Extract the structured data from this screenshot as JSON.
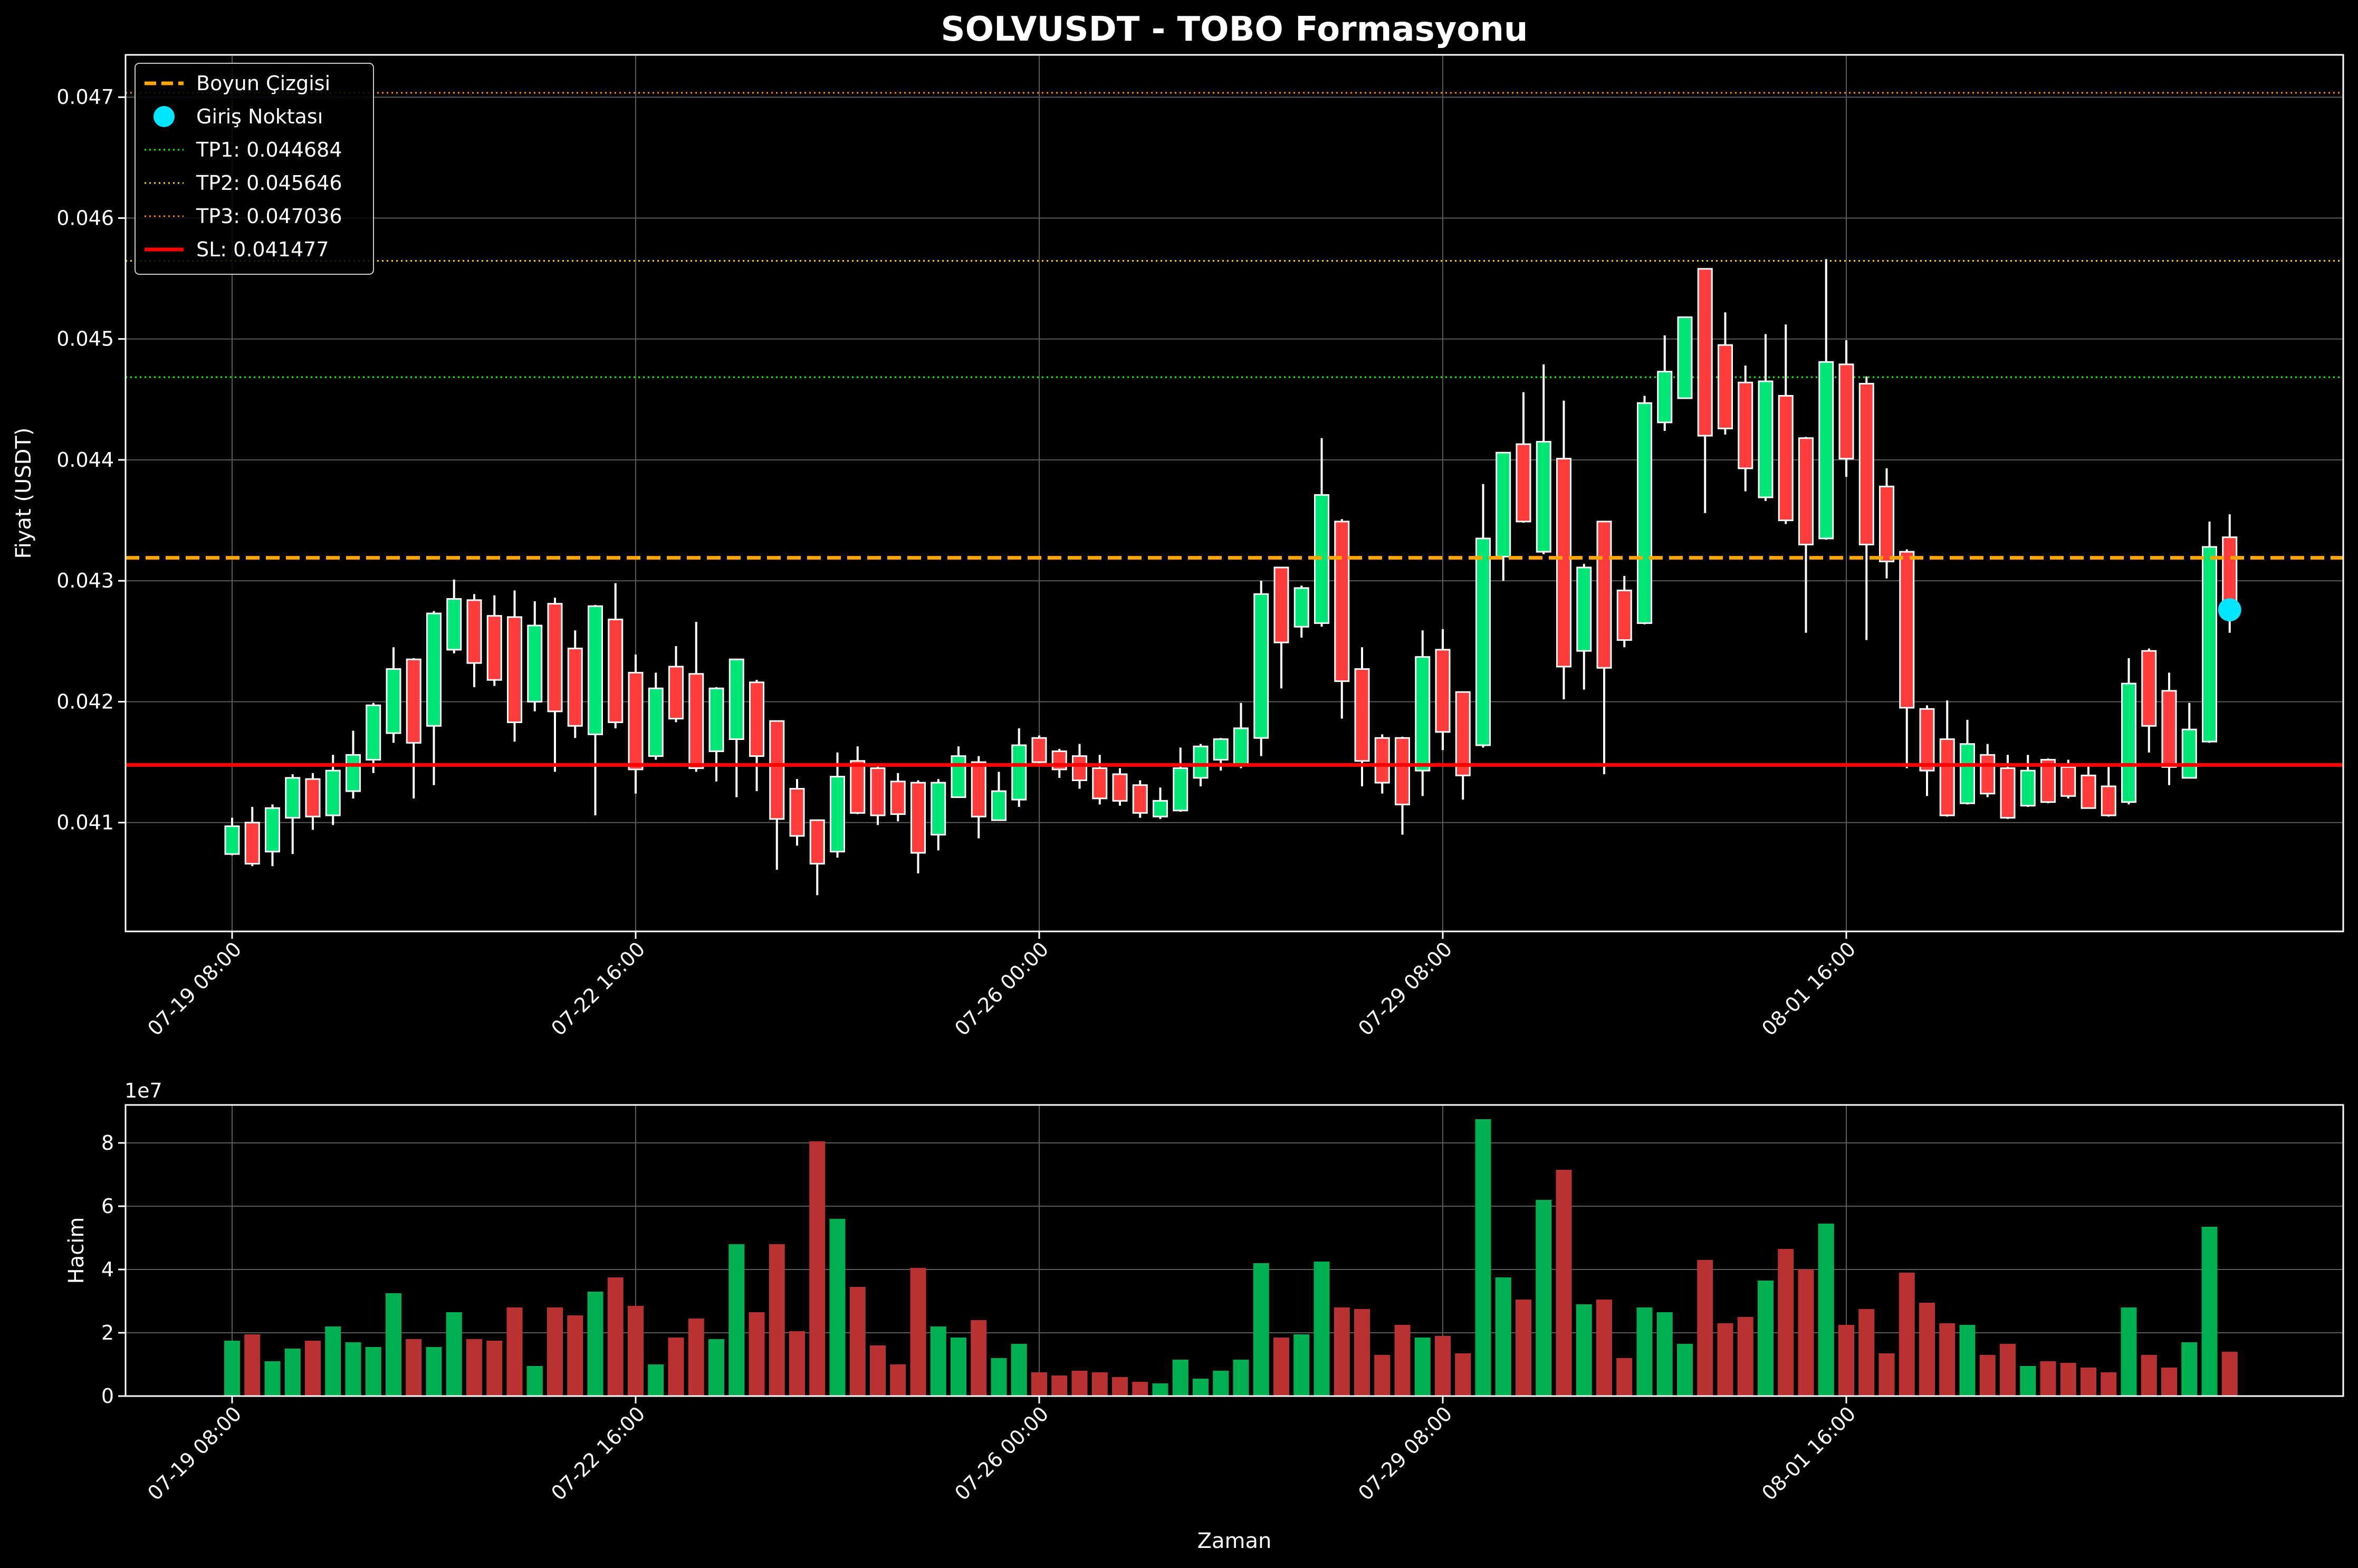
{
  "chart_data": {
    "type": "candlestick",
    "title": "SOLVUSDT - TOBO Formasyonu",
    "colors": {
      "background": "#000000",
      "up": "#00e676",
      "down": "#ff3d3d",
      "vol_up": "#00b050",
      "vol_down": "#b83232",
      "neck": "#ffa500",
      "entry": "#00e5ff",
      "tp1": "#00ff00",
      "tp2": "#ffd700",
      "tp3": "#ff8c00",
      "sl": "#ff0000"
    },
    "price_panel": {
      "ylabel": "Fiyat (USDT)",
      "ylim": [
        0.0401,
        0.04735
      ],
      "yticks": [
        "0.041",
        "0.042",
        "0.043",
        "0.044",
        "0.045",
        "0.046",
        "0.047"
      ],
      "grid": true
    },
    "volume_panel": {
      "ylabel": "Hacim",
      "multiplier": "1e7",
      "ylim": [
        0,
        9.2
      ],
      "yticks": [
        "0",
        "2",
        "4",
        "6",
        "8"
      ],
      "xlabel": "Zaman",
      "grid": true
    },
    "xticks": [
      {
        "index": 0,
        "label": "07-19 08:00"
      },
      {
        "index": 20,
        "label": "07-22 16:00"
      },
      {
        "index": 40,
        "label": "07-26 00:00"
      },
      {
        "index": 60,
        "label": "07-29 08:00"
      },
      {
        "index": 80,
        "label": "08-01 16:00"
      }
    ],
    "legend": {
      "position": "upper left",
      "entries": [
        {
          "label": "Boyun Çizgisi",
          "style": "dashed",
          "color": "#ffa500"
        },
        {
          "label": "Giriş Noktası",
          "style": "marker",
          "color": "#00e5ff"
        },
        {
          "label": "TP1: 0.044684",
          "style": "dotted",
          "color": "#00ff00"
        },
        {
          "label": "TP2: 0.045646",
          "style": "dotted",
          "color": "#ffd700"
        },
        {
          "label": "TP3: 0.047036",
          "style": "dotted",
          "color": "#ff8c00"
        },
        {
          "label": "SL: 0.041477",
          "style": "solid",
          "color": "#ff0000"
        }
      ]
    },
    "levels": {
      "neckline": 0.04319,
      "tp1": 0.044684,
      "tp2": 0.045646,
      "tp3": 0.047036,
      "sl": 0.041477
    },
    "entry_point": {
      "index": 99,
      "price": 0.04276
    },
    "candles": [
      [
        0.04074,
        0.04097,
        0.04073,
        0.04104,
        1.75
      ],
      [
        0.041,
        0.04066,
        0.04064,
        0.04113,
        1.95
      ],
      [
        0.04076,
        0.04112,
        0.04064,
        0.04115,
        1.1
      ],
      [
        0.04104,
        0.04137,
        0.04074,
        0.0414,
        1.5
      ],
      [
        0.04136,
        0.04105,
        0.04094,
        0.04141,
        1.75
      ],
      [
        0.04106,
        0.04143,
        0.04098,
        0.04156,
        2.2
      ],
      [
        0.04126,
        0.04156,
        0.0412,
        0.04176,
        1.7
      ],
      [
        0.04152,
        0.04197,
        0.04141,
        0.04199,
        1.55
      ],
      [
        0.04174,
        0.04227,
        0.04166,
        0.04245,
        3.25
      ],
      [
        0.04235,
        0.04166,
        0.0412,
        0.04236,
        1.8
      ],
      [
        0.0418,
        0.04273,
        0.04131,
        0.04275,
        1.55
      ],
      [
        0.04243,
        0.04285,
        0.0424,
        0.04301,
        2.65
      ],
      [
        0.04284,
        0.04232,
        0.04212,
        0.04289,
        1.8
      ],
      [
        0.04271,
        0.04218,
        0.04213,
        0.04288,
        1.75
      ],
      [
        0.0427,
        0.04183,
        0.04167,
        0.04292,
        2.8
      ],
      [
        0.042,
        0.04263,
        0.04192,
        0.04283,
        0.95
      ],
      [
        0.04281,
        0.04192,
        0.04142,
        0.04286,
        2.8
      ],
      [
        0.04244,
        0.0418,
        0.0417,
        0.04259,
        2.55
      ],
      [
        0.04173,
        0.04279,
        0.04106,
        0.0428,
        3.3
      ],
      [
        0.04268,
        0.04183,
        0.04178,
        0.04298,
        3.75
      ],
      [
        0.04224,
        0.04144,
        0.04124,
        0.04239,
        2.85
      ],
      [
        0.04155,
        0.04211,
        0.04152,
        0.04224,
        1.0
      ],
      [
        0.04229,
        0.04186,
        0.04183,
        0.04246,
        1.85
      ],
      [
        0.04223,
        0.04145,
        0.04142,
        0.04266,
        2.45
      ],
      [
        0.04159,
        0.04211,
        0.04134,
        0.04212,
        1.8
      ],
      [
        0.04169,
        0.04235,
        0.04121,
        0.04235,
        4.8
      ],
      [
        0.04216,
        0.04155,
        0.04126,
        0.04218,
        2.65
      ],
      [
        0.04184,
        0.04103,
        0.04061,
        0.04184,
        4.8
      ],
      [
        0.04128,
        0.04089,
        0.04081,
        0.04136,
        2.05
      ],
      [
        0.04102,
        0.04066,
        0.0404,
        0.04102,
        8.05
      ],
      [
        0.04076,
        0.04138,
        0.04071,
        0.04158,
        5.6
      ],
      [
        0.04151,
        0.04108,
        0.04107,
        0.04163,
        3.45
      ],
      [
        0.04145,
        0.04106,
        0.04098,
        0.04148,
        1.6
      ],
      [
        0.04134,
        0.04107,
        0.04101,
        0.04141,
        1.0
      ],
      [
        0.04133,
        0.04075,
        0.04058,
        0.04135,
        4.05
      ],
      [
        0.0409,
        0.04133,
        0.04077,
        0.04136,
        2.2
      ],
      [
        0.04121,
        0.04155,
        0.04121,
        0.04163,
        1.85
      ],
      [
        0.0415,
        0.04105,
        0.04087,
        0.04155,
        2.4
      ],
      [
        0.04102,
        0.04126,
        0.04102,
        0.04142,
        1.2
      ],
      [
        0.04119,
        0.04164,
        0.04113,
        0.04178,
        1.65
      ],
      [
        0.0417,
        0.0415,
        0.04147,
        0.04172,
        0.75
      ],
      [
        0.04159,
        0.04144,
        0.04137,
        0.04161,
        0.65
      ],
      [
        0.04155,
        0.04135,
        0.04128,
        0.04165,
        0.8
      ],
      [
        0.04145,
        0.0412,
        0.04115,
        0.04156,
        0.75
      ],
      [
        0.0414,
        0.04118,
        0.04114,
        0.04145,
        0.6
      ],
      [
        0.04131,
        0.04108,
        0.04104,
        0.04135,
        0.45
      ],
      [
        0.04105,
        0.04118,
        0.04103,
        0.04129,
        0.4
      ],
      [
        0.0411,
        0.04145,
        0.04109,
        0.04162,
        1.15
      ],
      [
        0.04137,
        0.04163,
        0.0413,
        0.04165,
        0.55
      ],
      [
        0.04152,
        0.04169,
        0.04143,
        0.0417,
        0.8
      ],
      [
        0.04148,
        0.04178,
        0.04145,
        0.04199,
        1.15
      ],
      [
        0.0417,
        0.04289,
        0.04155,
        0.043,
        4.2
      ],
      [
        0.04311,
        0.04249,
        0.04211,
        0.04311,
        1.85
      ],
      [
        0.04262,
        0.04294,
        0.04253,
        0.04296,
        1.95
      ],
      [
        0.04265,
        0.04371,
        0.04262,
        0.04418,
        4.25
      ],
      [
        0.04349,
        0.04217,
        0.04186,
        0.04351,
        2.8
      ],
      [
        0.04227,
        0.04151,
        0.0413,
        0.04245,
        2.75
      ],
      [
        0.0417,
        0.04133,
        0.04124,
        0.04173,
        1.3
      ],
      [
        0.0417,
        0.04115,
        0.0409,
        0.04171,
        2.25
      ],
      [
        0.04143,
        0.04237,
        0.04122,
        0.04259,
        1.85
      ],
      [
        0.04243,
        0.04175,
        0.0416,
        0.0426,
        1.9
      ],
      [
        0.04208,
        0.04139,
        0.04119,
        0.04208,
        1.35
      ],
      [
        0.04164,
        0.04335,
        0.04162,
        0.0438,
        8.75
      ],
      [
        0.0432,
        0.04406,
        0.043,
        0.04406,
        3.75
      ],
      [
        0.04413,
        0.04349,
        0.04348,
        0.04456,
        3.05
      ],
      [
        0.04324,
        0.04415,
        0.04322,
        0.04479,
        6.2
      ],
      [
        0.04401,
        0.04229,
        0.04202,
        0.04449,
        7.15
      ],
      [
        0.04242,
        0.04311,
        0.0421,
        0.04314,
        2.9
      ],
      [
        0.04349,
        0.04228,
        0.0414,
        0.04349,
        3.05
      ],
      [
        0.04292,
        0.04251,
        0.04245,
        0.04304,
        1.2
      ],
      [
        0.04265,
        0.04447,
        0.04264,
        0.04453,
        2.8
      ],
      [
        0.04431,
        0.04473,
        0.04424,
        0.04503,
        2.65
      ],
      [
        0.04451,
        0.04518,
        0.04451,
        0.04518,
        1.65
      ],
      [
        0.04558,
        0.0442,
        0.04356,
        0.04558,
        4.3
      ],
      [
        0.04495,
        0.04426,
        0.04421,
        0.04522,
        2.3
      ],
      [
        0.04464,
        0.04393,
        0.04374,
        0.04478,
        2.5
      ],
      [
        0.04369,
        0.04465,
        0.04366,
        0.04504,
        3.65
      ],
      [
        0.04453,
        0.0435,
        0.04347,
        0.04512,
        4.65
      ],
      [
        0.04418,
        0.0433,
        0.04257,
        0.04419,
        4.0
      ],
      [
        0.04335,
        0.04481,
        0.04334,
        0.04566,
        5.45
      ],
      [
        0.04479,
        0.04401,
        0.04386,
        0.04499,
        2.25
      ],
      [
        0.04463,
        0.0433,
        0.04251,
        0.04469,
        2.75
      ],
      [
        0.04378,
        0.04316,
        0.04302,
        0.04393,
        1.35
      ],
      [
        0.04324,
        0.04195,
        0.04145,
        0.04326,
        3.9
      ],
      [
        0.04194,
        0.04143,
        0.04122,
        0.04197,
        2.95
      ],
      [
        0.04169,
        0.04106,
        0.04105,
        0.04201,
        2.3
      ],
      [
        0.04116,
        0.04165,
        0.04115,
        0.04185,
        2.25
      ],
      [
        0.04156,
        0.04124,
        0.04121,
        0.04165,
        1.3
      ],
      [
        0.04145,
        0.04104,
        0.04103,
        0.04156,
        1.65
      ],
      [
        0.04114,
        0.04143,
        0.04113,
        0.04156,
        0.95
      ],
      [
        0.04152,
        0.04117,
        0.04116,
        0.04153,
        1.1
      ],
      [
        0.04146,
        0.04122,
        0.0412,
        0.04152,
        1.05
      ],
      [
        0.04139,
        0.04112,
        0.04113,
        0.04148,
        0.9
      ],
      [
        0.0413,
        0.04106,
        0.04105,
        0.04146,
        0.75
      ],
      [
        0.04117,
        0.04215,
        0.04115,
        0.04236,
        2.8
      ],
      [
        0.04242,
        0.0418,
        0.04158,
        0.04244,
        1.3
      ],
      [
        0.04209,
        0.04146,
        0.04131,
        0.04224,
        0.9
      ],
      [
        0.04137,
        0.04177,
        0.04137,
        0.04199,
        1.7
      ],
      [
        0.04167,
        0.04328,
        0.04166,
        0.04349,
        5.35
      ],
      [
        0.04336,
        0.04278,
        0.04257,
        0.04355,
        1.4
      ]
    ]
  }
}
